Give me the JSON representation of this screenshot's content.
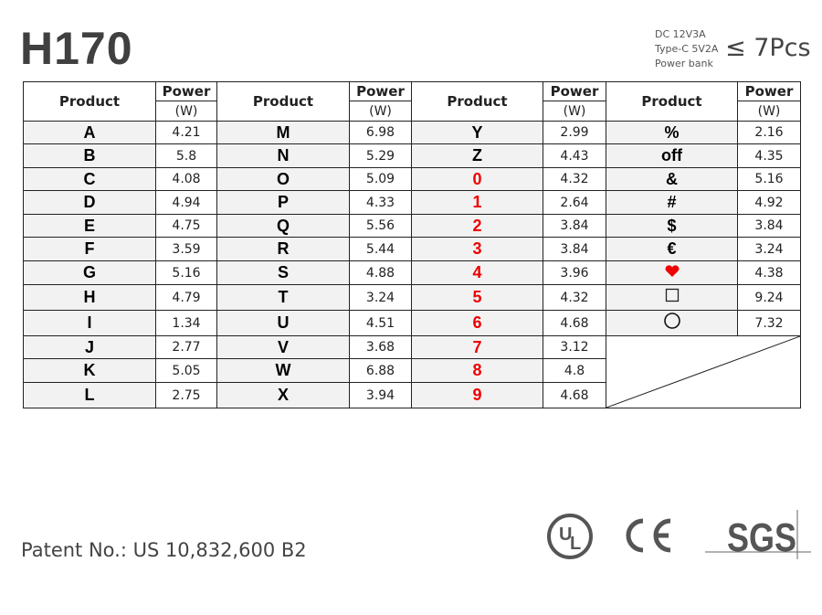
{
  "title": "H170",
  "specs": [
    "DC 12V3A",
    "Type-C 5V2A",
    "Power bank"
  ],
  "quantity": "≤ 7Pcs",
  "table": {
    "header_product": "Product",
    "header_power": "Power",
    "header_unit": "(W)",
    "columns": [
      {
        "rows": [
          [
            "A",
            "4.21"
          ],
          [
            "B",
            "5.8"
          ],
          [
            "C",
            "4.08"
          ],
          [
            "D",
            "4.94"
          ],
          [
            "E",
            "4.75"
          ],
          [
            "F",
            "3.59"
          ],
          [
            "G",
            "5.16"
          ],
          [
            "H",
            "4.79"
          ],
          [
            "I",
            "1.34"
          ],
          [
            "J",
            "2.77"
          ],
          [
            "K",
            "5.05"
          ],
          [
            "L",
            "2.75"
          ]
        ]
      },
      {
        "rows": [
          [
            "M",
            "6.98"
          ],
          [
            "N",
            "5.29"
          ],
          [
            "O",
            "5.09"
          ],
          [
            "P",
            "4.33"
          ],
          [
            "Q",
            "5.56"
          ],
          [
            "R",
            "5.44"
          ],
          [
            "S",
            "4.88"
          ],
          [
            "T",
            "3.24"
          ],
          [
            "U",
            "4.51"
          ],
          [
            "V",
            "3.68"
          ],
          [
            "W",
            "6.88"
          ],
          [
            "X",
            "3.94"
          ]
        ]
      },
      {
        "rows": [
          [
            "Y",
            "2.99"
          ],
          [
            "Z",
            "4.43"
          ],
          [
            "0",
            "4.32"
          ],
          [
            "1",
            "2.64"
          ],
          [
            "2",
            "3.84"
          ],
          [
            "3",
            "3.84"
          ],
          [
            "4",
            "3.96"
          ],
          [
            "5",
            "4.32"
          ],
          [
            "6",
            "4.68"
          ],
          [
            "7",
            "3.12"
          ],
          [
            "8",
            "4.8"
          ],
          [
            "9",
            "4.68"
          ]
        ]
      },
      {
        "rows": [
          [
            "%",
            "2.16"
          ],
          [
            "off",
            "4.35"
          ],
          [
            "&",
            "5.16"
          ],
          [
            "#",
            "4.92"
          ],
          [
            "$",
            "3.84"
          ],
          [
            "€",
            "3.24"
          ],
          [
            "heart-icon",
            "4.38"
          ],
          [
            "square-icon",
            "9.24"
          ],
          [
            "circle-icon",
            "7.32"
          ]
        ]
      }
    ],
    "highlight_color": "#e00000"
  },
  "patent": "Patent No.: US 10,832,600 B2",
  "certifications": [
    "UL",
    "CE",
    "SGS"
  ]
}
